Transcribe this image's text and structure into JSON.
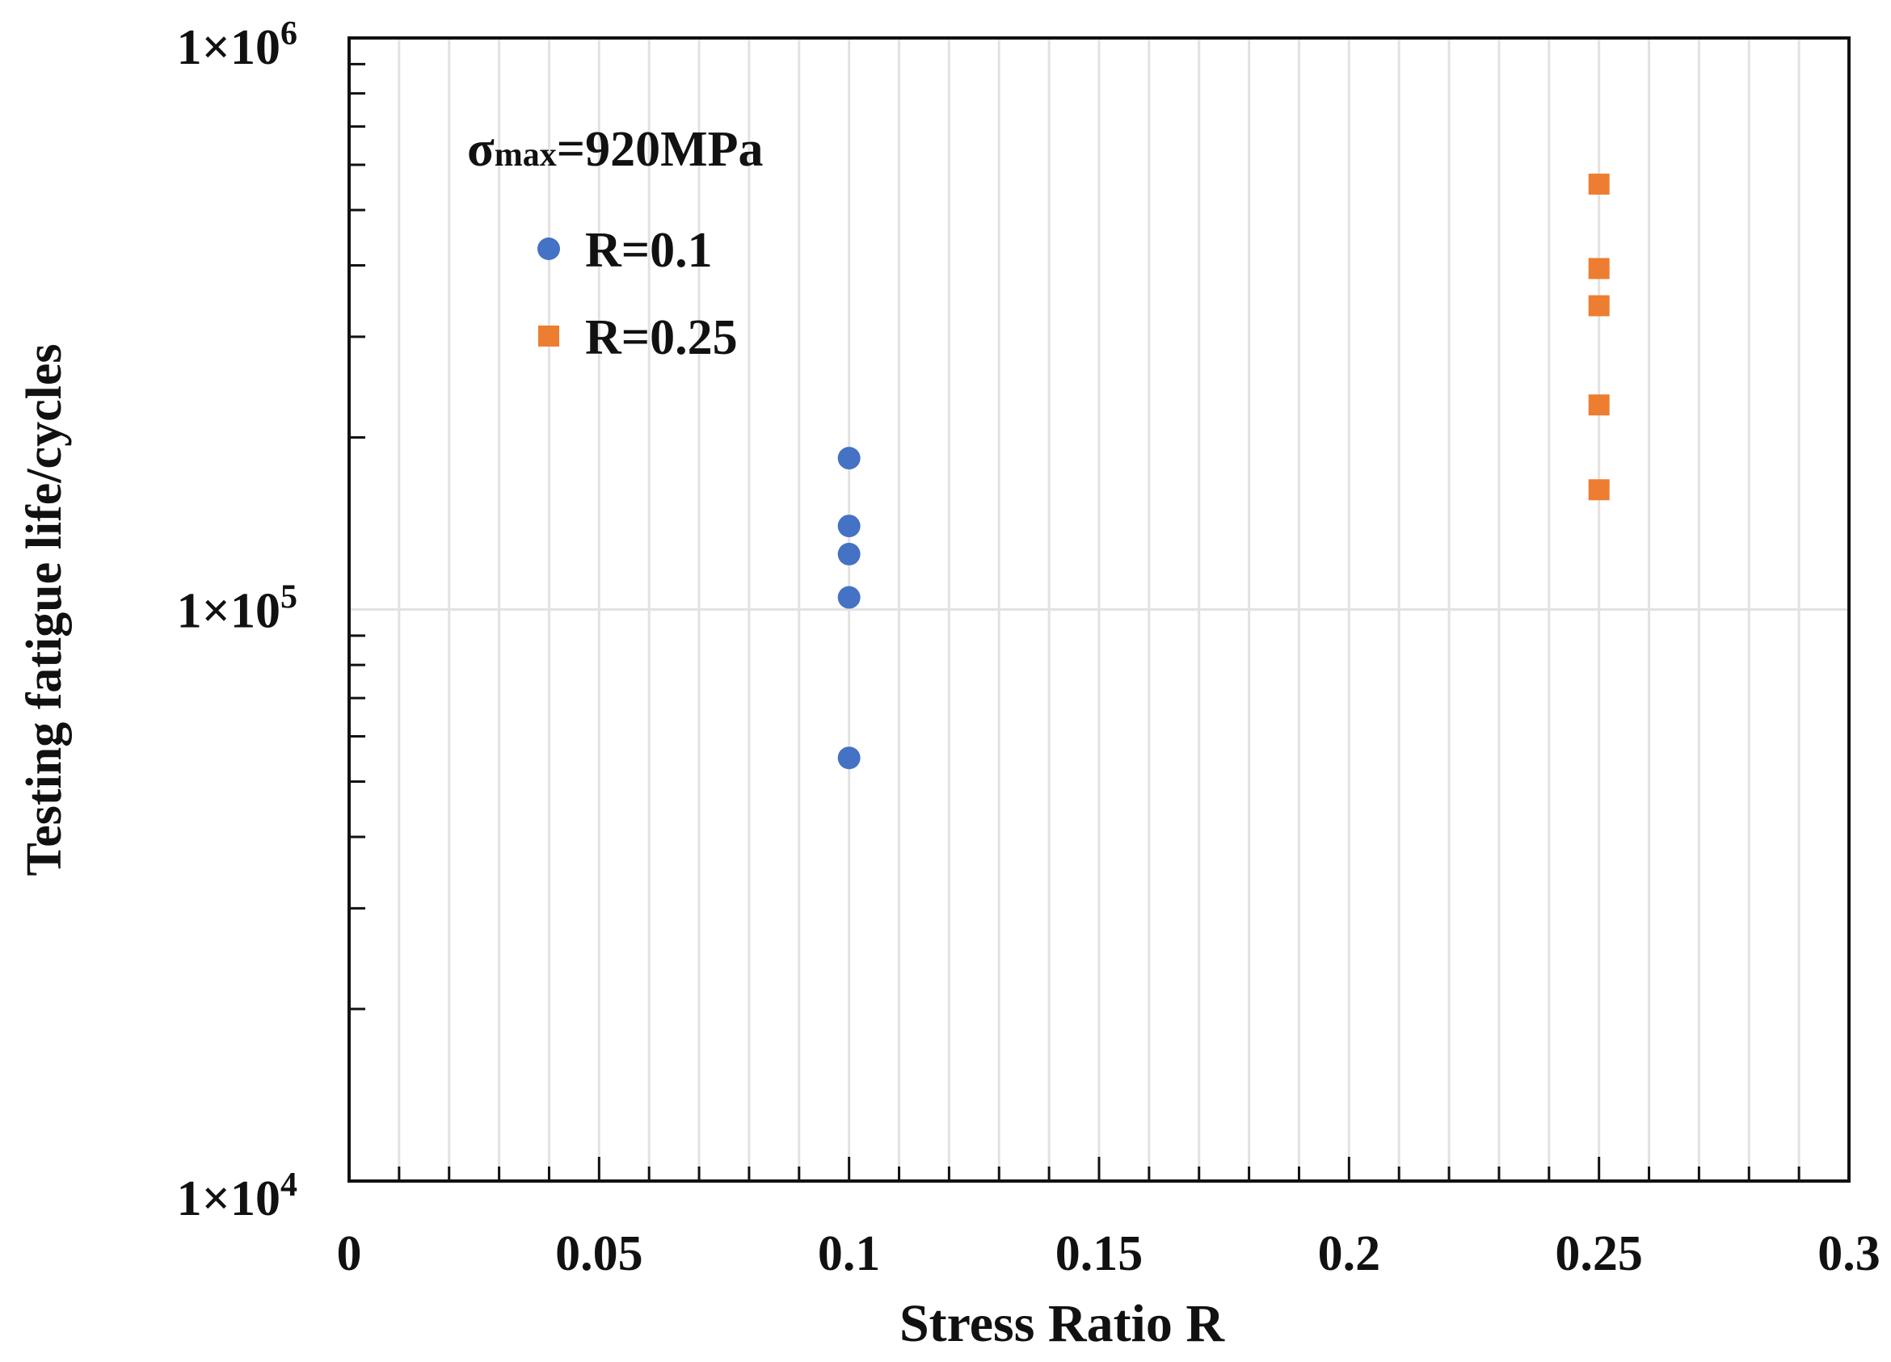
{
  "chart_data": {
    "type": "scatter",
    "title": "",
    "xlabel": "Stress Ratio R",
    "ylabel": "Testing fatigue life/cycles",
    "xlim": [
      0,
      0.3
    ],
    "ylim": [
      10000,
      1000000
    ],
    "yscale": "log",
    "grid": true,
    "x_ticks": [
      {
        "value": 0,
        "label": "0"
      },
      {
        "value": 0.05,
        "label": "0.05"
      },
      {
        "value": 0.1,
        "label": "0.1"
      },
      {
        "value": 0.15,
        "label": "0.15"
      },
      {
        "value": 0.2,
        "label": "0.2"
      },
      {
        "value": 0.25,
        "label": "0.25"
      },
      {
        "value": 0.3,
        "label": "0.3"
      }
    ],
    "y_ticks": [
      {
        "value": 10000,
        "mantissa": "1",
        "times": "×",
        "base": "10",
        "exp": "4"
      },
      {
        "value": 100000,
        "mantissa": "1",
        "times": "×",
        "base": "10",
        "exp": "5"
      },
      {
        "value": 1000000,
        "mantissa": "1",
        "times": "×",
        "base": "10",
        "exp": "6"
      }
    ],
    "legend": {
      "title_symbol": "σ",
      "title_subscript": "max",
      "title_rest": "=920MPa",
      "placement": "top-left"
    },
    "series": [
      {
        "name": "R=0.1",
        "marker": "circle",
        "color": "#4472C4",
        "points": [
          {
            "x": 0.1,
            "y": 184000
          },
          {
            "x": 0.1,
            "y": 140000
          },
          {
            "x": 0.1,
            "y": 125000
          },
          {
            "x": 0.1,
            "y": 105000
          },
          {
            "x": 0.1,
            "y": 55000
          }
        ]
      },
      {
        "name": "R=0.25",
        "marker": "square",
        "color": "#ED7D31",
        "points": [
          {
            "x": 0.25,
            "y": 555000
          },
          {
            "x": 0.25,
            "y": 395000
          },
          {
            "x": 0.25,
            "y": 340000
          },
          {
            "x": 0.25,
            "y": 228000
          },
          {
            "x": 0.25,
            "y": 162000
          }
        ]
      }
    ]
  }
}
